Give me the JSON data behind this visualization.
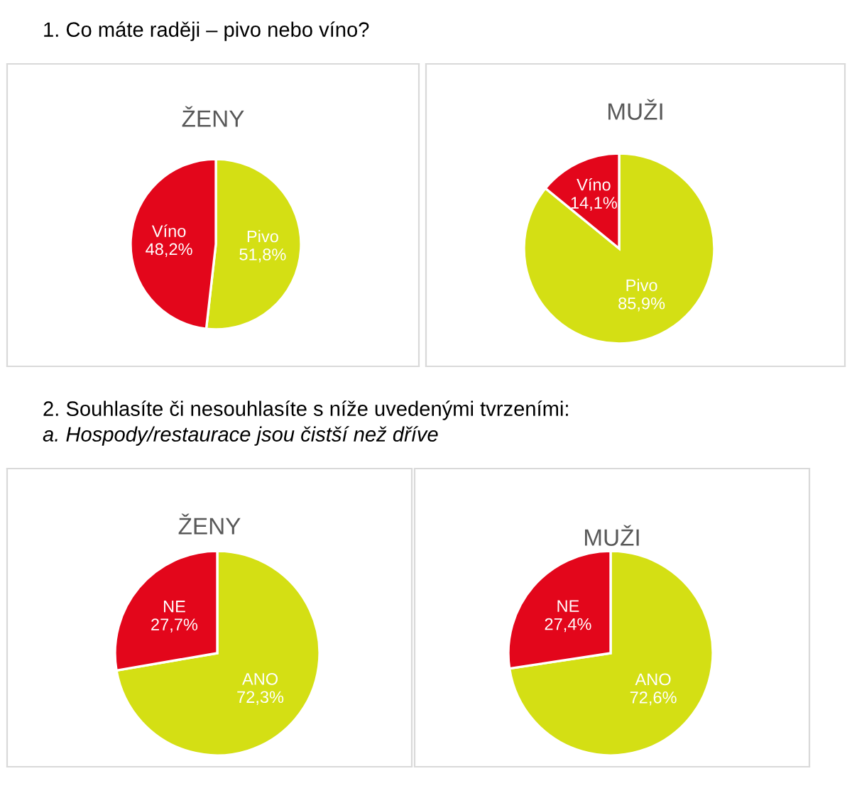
{
  "chart_data": [
    {
      "type": "pie",
      "title": "ŽENY",
      "annotations": [
        "1. Co máte raději – pivo nebo víno?"
      ],
      "categories": [
        "Pivo",
        "Víno"
      ],
      "values": [
        51.8,
        48.2
      ],
      "colors": [
        "#d4df14",
        "#e3061b"
      ],
      "value_labels": [
        "51,8%",
        "48,2%"
      ]
    },
    {
      "type": "pie",
      "title": "MUŽI",
      "categories": [
        "Pivo",
        "Víno"
      ],
      "values": [
        85.9,
        14.1
      ],
      "colors": [
        "#d4df14",
        "#e3061b"
      ],
      "value_labels": [
        "85,9%",
        "14,1%"
      ]
    },
    {
      "type": "pie",
      "title": "ŽENY",
      "annotations": [
        "2. Souhlasíte či nesouhlasíte s níže uvedenými tvrzeními:",
        "a. Hospody/restaurace jsou čistší než dříve"
      ],
      "categories": [
        "ANO",
        "NE"
      ],
      "values": [
        72.3,
        27.7
      ],
      "colors": [
        "#d4df14",
        "#e3061b"
      ],
      "value_labels": [
        "72,3%",
        "27,7%"
      ]
    },
    {
      "type": "pie",
      "title": "MUŽI",
      "categories": [
        "ANO",
        "NE"
      ],
      "values": [
        72.6,
        27.4
      ],
      "colors": [
        "#d4df14",
        "#e3061b"
      ],
      "value_labels": [
        "72,6%",
        "27,4%"
      ]
    }
  ]
}
